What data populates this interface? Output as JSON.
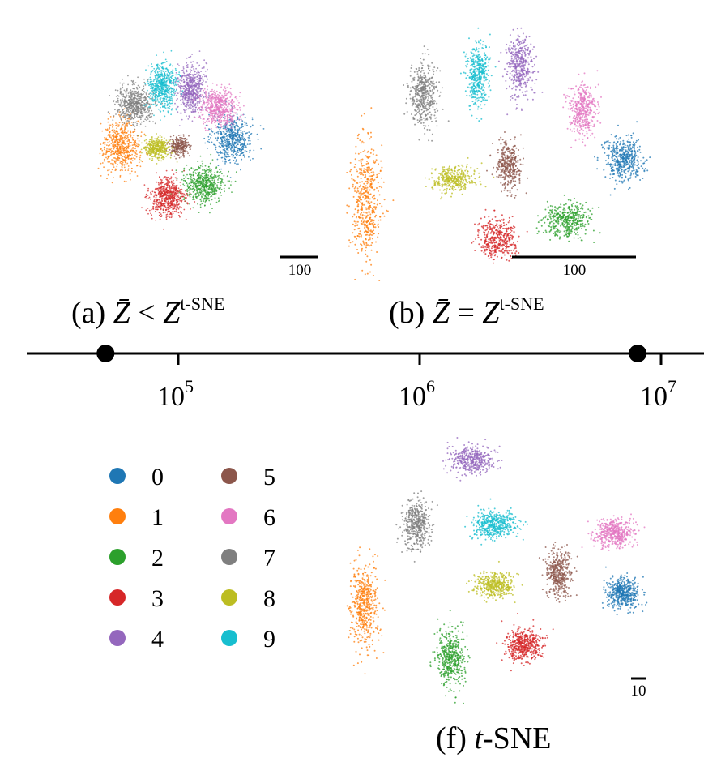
{
  "chart_data": [
    {
      "type": "scatter",
      "panel": "(a)",
      "caption": {
        "prefix": "(a) ",
        "lhs": "Z̄",
        "op": " < ",
        "base": "Z",
        "sup": "t-SNE"
      },
      "scale_bar": "100",
      "clusters": [
        {
          "label": "0",
          "center": [
            100,
            15
          ],
          "spread": [
            34,
            42
          ],
          "points": 600
        },
        {
          "label": "1",
          "center": [
            -115,
            0
          ],
          "spread": [
            32,
            46
          ],
          "points": 600
        },
        {
          "label": "2",
          "center": [
            45,
            -75
          ],
          "spread": [
            36,
            32
          ],
          "points": 600
        },
        {
          "label": "3",
          "center": [
            -25,
            -100
          ],
          "spread": [
            30,
            34
          ],
          "points": 600
        },
        {
          "label": "4",
          "center": [
            20,
            110
          ],
          "spread": [
            24,
            44
          ],
          "points": 600
        },
        {
          "label": "5",
          "center": [
            -2,
            0
          ],
          "spread": [
            16,
            16
          ],
          "points": 300
        },
        {
          "label": "6",
          "center": [
            75,
            75
          ],
          "spread": [
            32,
            30
          ],
          "points": 600
        },
        {
          "label": "7",
          "center": [
            -90,
            80
          ],
          "spread": [
            32,
            32
          ],
          "points": 600
        },
        {
          "label": "8",
          "center": [
            -45,
            -5
          ],
          "spread": [
            22,
            18
          ],
          "points": 400
        },
        {
          "label": "9",
          "center": [
            -35,
            115
          ],
          "spread": [
            24,
            40
          ],
          "points": 600
        }
      ]
    },
    {
      "type": "scatter",
      "panel": "(b)",
      "caption": {
        "prefix": "(b) ",
        "lhs": "Z̄",
        "op": " = ",
        "base": "Z",
        "sup": "t-SNE"
      },
      "scale_bar": "100",
      "clusters": [
        {
          "label": "0",
          "center": [
            97,
            -5
          ],
          "spread": [
            14,
            16
          ],
          "points": 450
        },
        {
          "label": "1",
          "center": [
            -110,
            -38
          ],
          "spread": [
            11,
            42
          ],
          "points": 500
        },
        {
          "label": "2",
          "center": [
            52,
            -53
          ],
          "spread": [
            18,
            12
          ],
          "points": 400
        },
        {
          "label": "3",
          "center": [
            -4,
            -68
          ],
          "spread": [
            14,
            14
          ],
          "points": 400
        },
        {
          "label": "4",
          "center": [
            14,
            71
          ],
          "spread": [
            10,
            22
          ],
          "points": 400
        },
        {
          "label": "5",
          "center": [
            5,
            -10
          ],
          "spread": [
            9,
            18
          ],
          "points": 350
        },
        {
          "label": "6",
          "center": [
            64,
            36
          ],
          "spread": [
            11,
            19
          ],
          "points": 400
        },
        {
          "label": "7",
          "center": [
            -64,
            47
          ],
          "spread": [
            10,
            24
          ],
          "points": 450
        },
        {
          "label": "8",
          "center": [
            -40,
            -20
          ],
          "spread": [
            16,
            10
          ],
          "points": 350
        },
        {
          "label": "9",
          "center": [
            -20,
            64
          ],
          "spread": [
            8,
            24
          ],
          "points": 400
        }
      ]
    },
    {
      "type": "scatter",
      "panel": "(f)",
      "caption": {
        "prefix": "(f) ",
        "t": "t",
        "rest": "-SNE"
      },
      "scale_bar": "10",
      "clusters": [
        {
          "label": "0",
          "center": [
            28,
            -7
          ],
          "spread": [
            3.4,
            3.2
          ],
          "points": 450
        },
        {
          "label": "1",
          "center": [
            -32,
            -10
          ],
          "spread": [
            3.0,
            9.0
          ],
          "points": 500
        },
        {
          "label": "2",
          "center": [
            -12,
            -22
          ],
          "spread": [
            3.0,
            6.0
          ],
          "points": 450
        },
        {
          "label": "3",
          "center": [
            5,
            -19
          ],
          "spread": [
            3.8,
            3.4
          ],
          "points": 450
        },
        {
          "label": "4",
          "center": [
            -7,
            24
          ],
          "spread": [
            5.0,
            2.8
          ],
          "points": 400
        },
        {
          "label": "5",
          "center": [
            13,
            -2
          ],
          "spread": [
            2.6,
            5.0
          ],
          "points": 400
        },
        {
          "label": "6",
          "center": [
            26,
            7
          ],
          "spread": [
            4.0,
            2.8
          ],
          "points": 450
        },
        {
          "label": "7",
          "center": [
            -20,
            9
          ],
          "spread": [
            2.8,
            5.0
          ],
          "points": 450
        },
        {
          "label": "8",
          "center": [
            -2,
            -5
          ],
          "spread": [
            4.2,
            2.6
          ],
          "points": 400
        },
        {
          "label": "9",
          "center": [
            -2,
            9
          ],
          "spread": [
            4.6,
            3.0
          ],
          "points": 450
        }
      ]
    }
  ],
  "axis": {
    "scale": "log",
    "range": [
      25000,
      15000000
    ],
    "ticks": [
      {
        "value": 100000,
        "base": "10",
        "exp": "5"
      },
      {
        "value": 1000000,
        "base": "10",
        "exp": "6"
      },
      {
        "value": 10000000,
        "base": "10",
        "exp": "7"
      }
    ],
    "markers": [
      50000,
      8000000
    ]
  },
  "legend": {
    "entries": [
      {
        "label": "0",
        "color": "#1f77b4"
      },
      {
        "label": "1",
        "color": "#ff7f0e"
      },
      {
        "label": "2",
        "color": "#2ca02c"
      },
      {
        "label": "3",
        "color": "#d62728"
      },
      {
        "label": "4",
        "color": "#9467bd"
      },
      {
        "label": "5",
        "color": "#8c564b"
      },
      {
        "label": "6",
        "color": "#e377c2"
      },
      {
        "label": "7",
        "color": "#7f7f7f"
      },
      {
        "label": "8",
        "color": "#bcbd22"
      },
      {
        "label": "9",
        "color": "#17becf"
      }
    ]
  }
}
